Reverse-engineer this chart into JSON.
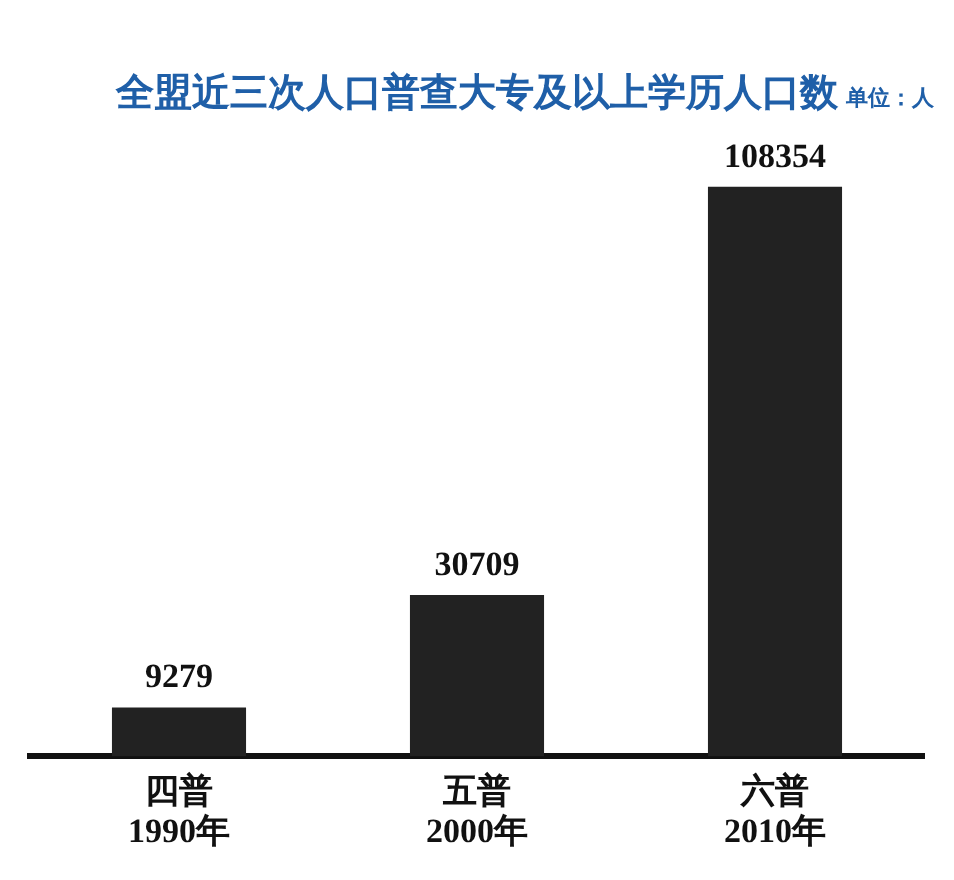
{
  "chart_data": {
    "type": "bar",
    "title": "全盟近三次人口普查大专及以上学历人口数",
    "annotations": [
      "单位：人"
    ],
    "categories": [
      "四普\n1990年",
      "五普\n2000年",
      "六普\n2010年"
    ],
    "values": [
      9279,
      30709,
      108354
    ],
    "color": "#222222",
    "data_labels": true,
    "tick_labels": "x",
    "grid": false,
    "legend": false
  }
}
